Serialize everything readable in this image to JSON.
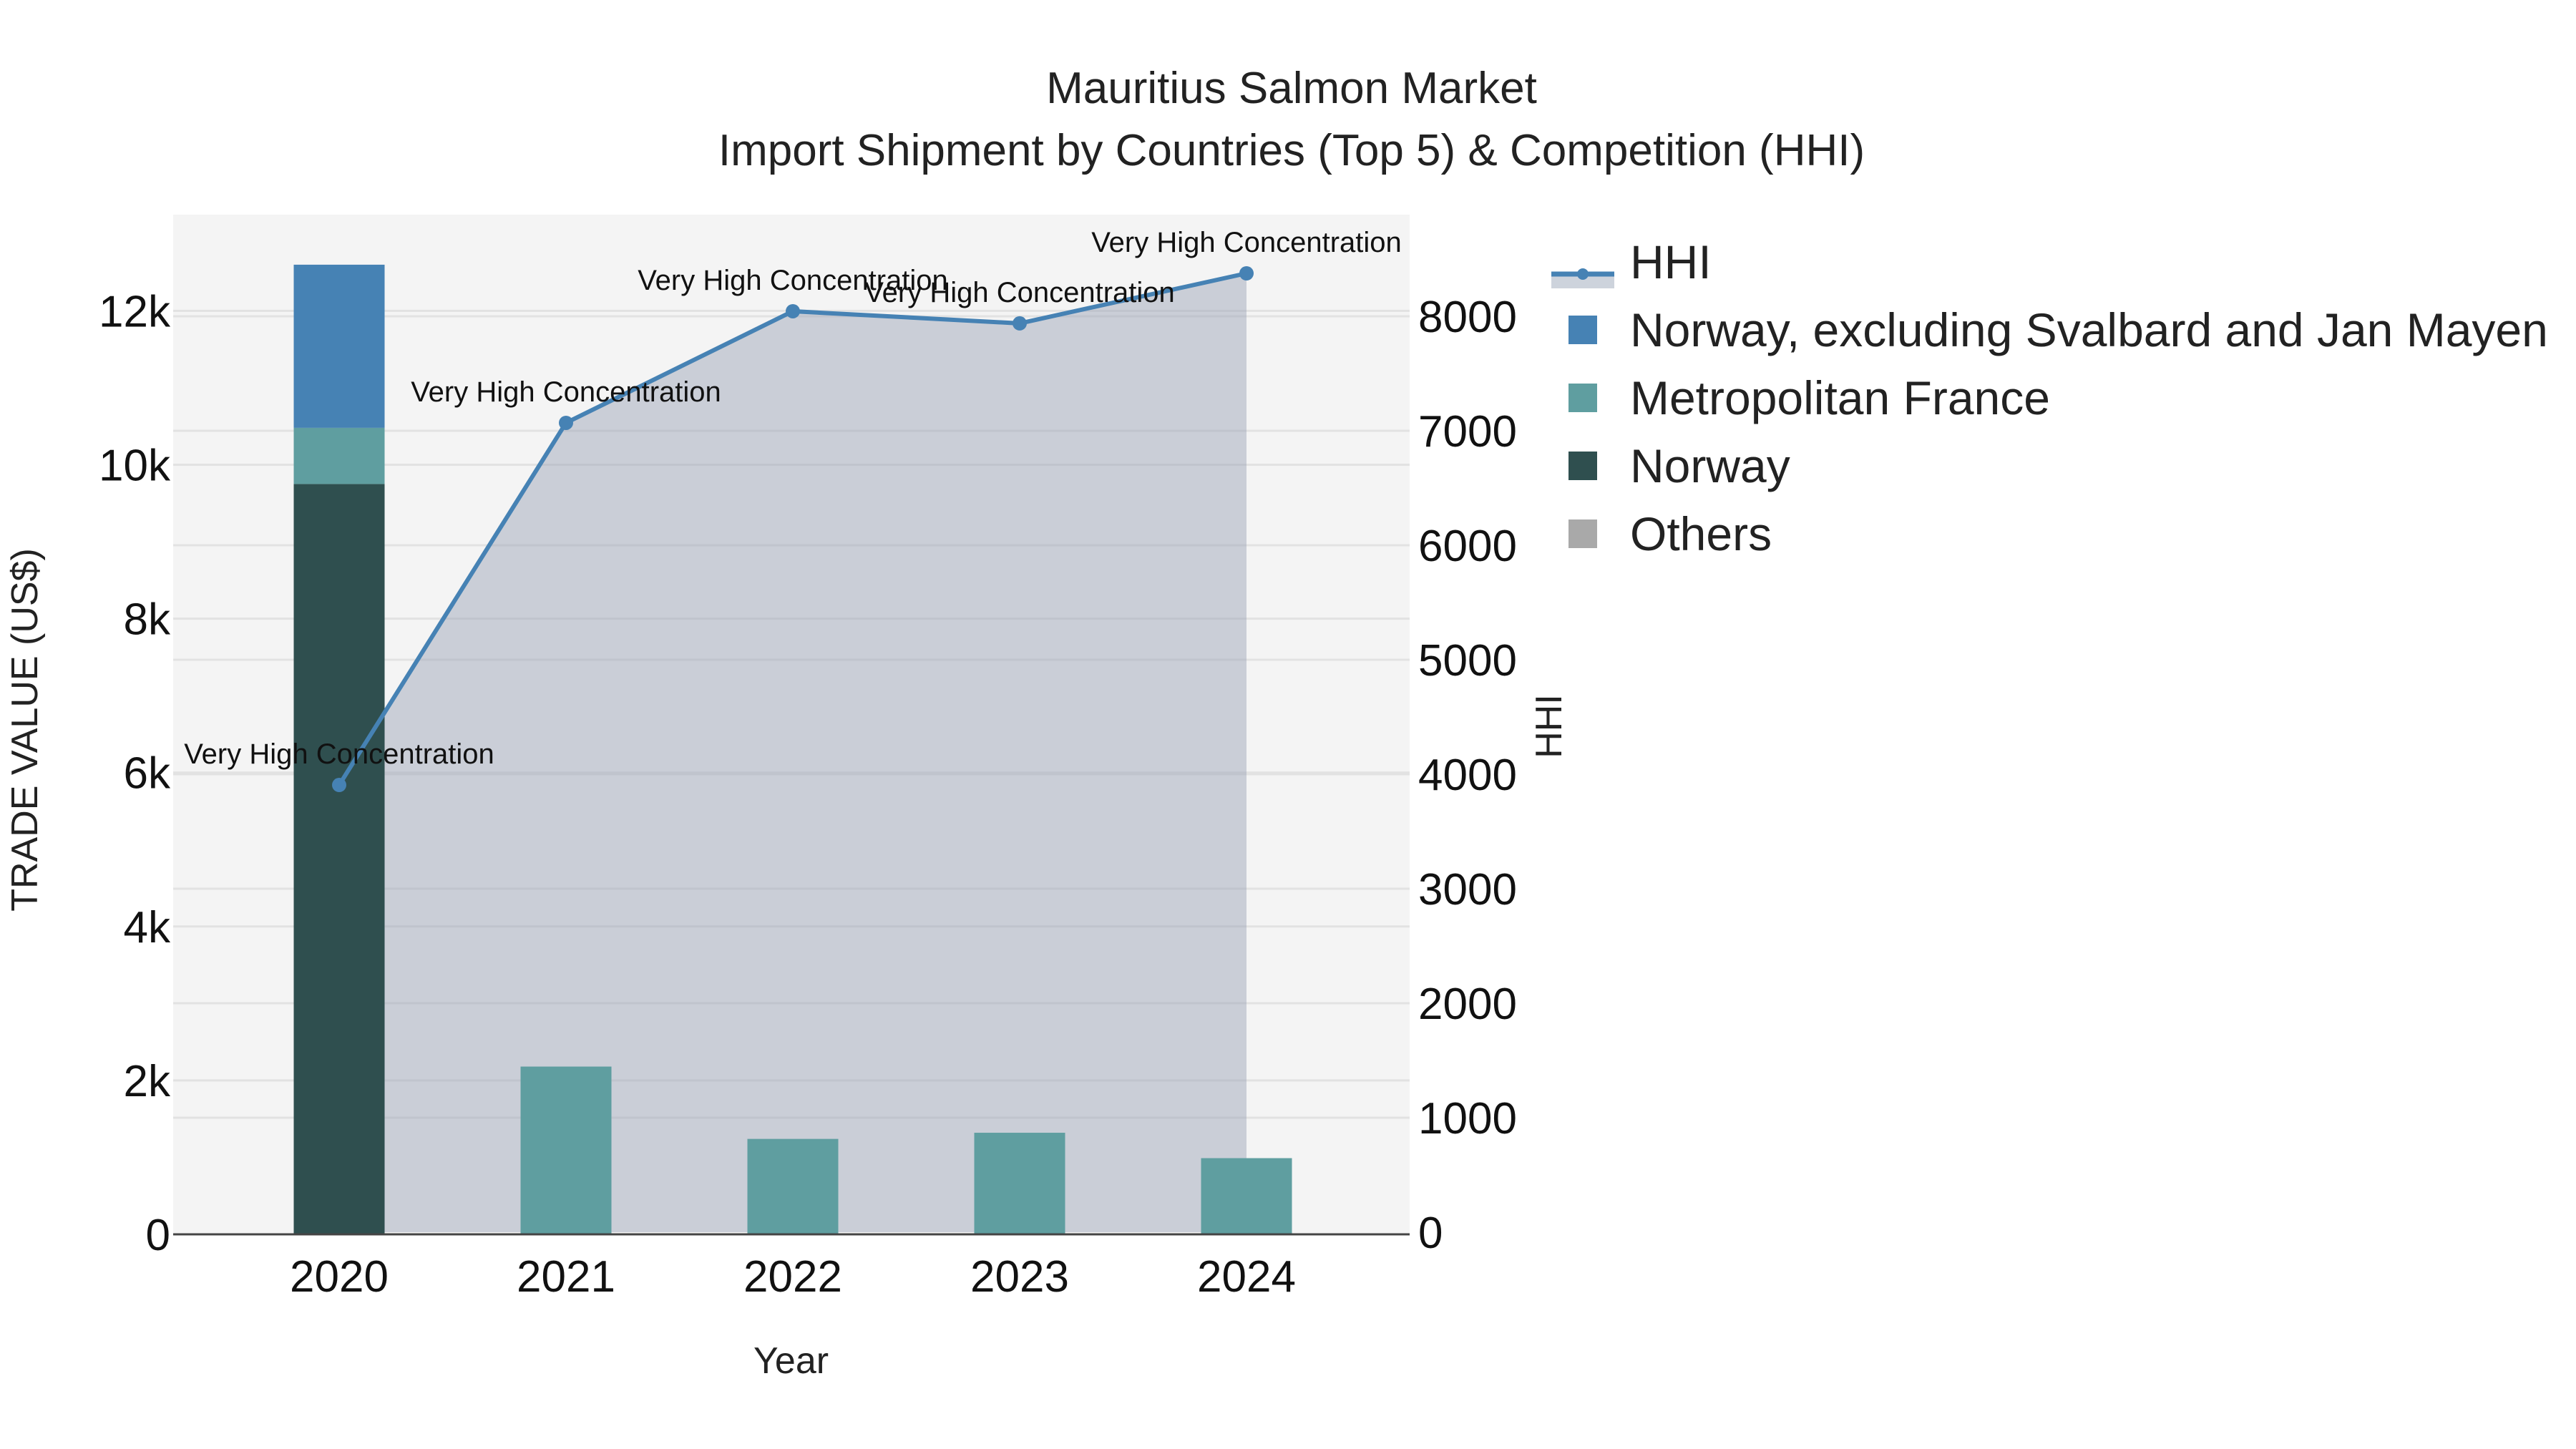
{
  "title": {
    "line1": "Mauritius Salmon Market",
    "line2": "Import Shipment by Countries (Top 5) & Competition (HHI)"
  },
  "axes": {
    "x_title": "Year",
    "y_left_title": "TRADE VALUE (US$)",
    "y_right_title": "HHI",
    "x_ticks": [
      "2020",
      "2021",
      "2022",
      "2023",
      "2024"
    ],
    "y_left_ticks": [
      "0",
      "2k",
      "4k",
      "6k",
      "8k",
      "10k",
      "12k"
    ],
    "y_right_ticks": [
      "0",
      "1000",
      "2000",
      "3000",
      "4000",
      "5000",
      "6000",
      "7000",
      "8000"
    ]
  },
  "legend": {
    "items": [
      {
        "label": "HHI",
        "color": "#4682b4",
        "kind": "line"
      },
      {
        "label": "Norway, excluding Svalbard and Jan Mayen",
        "color": "#4682b4",
        "kind": "square"
      },
      {
        "label": "Metropolitan France",
        "color": "#5f9ea0",
        "kind": "square"
      },
      {
        "label": "Norway",
        "color": "#2f4f4f",
        "kind": "square"
      },
      {
        "label": "Others",
        "color": "#a9a9a9",
        "kind": "square"
      }
    ]
  },
  "annotations": [
    "Very High Concentration",
    "Very High Concentration",
    "Very High Concentration",
    "Very High Concentration",
    "Very High Concentration"
  ],
  "chart_data": {
    "type": "bar",
    "title": "Mauritius Salmon Market — Import Shipment by Countries (Top 5) & Competition (HHI)",
    "xlabel": "Year",
    "ylabel": "TRADE VALUE (US$)",
    "y2label": "HHI",
    "categories": [
      "2020",
      "2021",
      "2022",
      "2023",
      "2024"
    ],
    "barmode": "stack",
    "series": [
      {
        "name": "Norway",
        "color": "#2f4f4f",
        "axis": "y",
        "values": [
          9750,
          0,
          0,
          0,
          0
        ]
      },
      {
        "name": "Metropolitan France",
        "color": "#5f9ea0",
        "axis": "y",
        "values": [
          730,
          2180,
          1240,
          1320,
          990
        ]
      },
      {
        "name": "Norway, excluding Svalbard and Jan Mayen",
        "color": "#4682b4",
        "axis": "y",
        "values": [
          2120,
          0,
          0,
          0,
          0
        ]
      },
      {
        "name": "Others",
        "color": "#a9a9a9",
        "axis": "y",
        "values": [
          0,
          0,
          0,
          0,
          0
        ]
      },
      {
        "name": "HHI",
        "type": "line+area",
        "color": "#4682b4",
        "axis": "y2",
        "values": [
          3906,
          7069,
          8044,
          7938,
          8375
        ],
        "labels": [
          "Very High Concentration",
          "Very High Concentration",
          "Very High Concentration",
          "Very High Concentration",
          "Very High Concentration"
        ]
      }
    ],
    "ylim": [
      0,
      13250
    ],
    "y2lim": [
      0,
      8900
    ],
    "grid": true,
    "legend_position": "right"
  }
}
